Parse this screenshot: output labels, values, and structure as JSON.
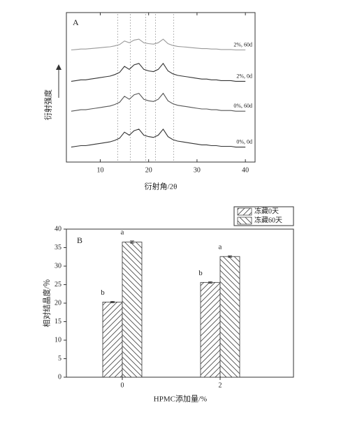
{
  "chart_data": [
    {
      "type": "line",
      "panel": "A",
      "x_label": "衍射角/2θ",
      "y_label": "衍射强度",
      "x": [
        4,
        5,
        6,
        7,
        8,
        9,
        10,
        11,
        12,
        13,
        14,
        15,
        16,
        17,
        18,
        19,
        20,
        21,
        22,
        23,
        24,
        25,
        26,
        27,
        28,
        29,
        30,
        31,
        32,
        33,
        34,
        35,
        36,
        37,
        38,
        39,
        40
      ],
      "xlim": [
        3,
        42
      ],
      "xticks": [
        10,
        20,
        30,
        40
      ],
      "ylim": [
        0,
        100
      ],
      "ref_lines": [
        13.6,
        16.2,
        19.4,
        21.4,
        25.2
      ],
      "series": [
        {
          "name": "0%, 0d",
          "color": "#333333",
          "values": [
            10,
            10.5,
            11,
            11,
            11.5,
            12,
            12.5,
            13,
            13.5,
            14.5,
            16,
            20,
            18,
            21,
            22,
            18,
            17,
            16.5,
            18,
            22,
            17,
            15,
            14,
            13.5,
            13,
            12.5,
            12,
            11.5,
            11.5,
            11,
            11,
            10.5,
            10.5,
            10.5,
            10,
            10,
            10
          ]
        },
        {
          "name": "0%, 60d",
          "color": "#555555",
          "values": [
            34,
            34.5,
            35,
            35,
            35.5,
            36,
            36.5,
            37,
            37.5,
            38.5,
            40,
            44,
            42,
            45,
            46,
            42,
            41,
            40.5,
            42,
            46,
            41,
            39,
            38,
            37.5,
            37,
            36.5,
            36,
            35.5,
            35.5,
            35,
            35,
            34.5,
            34.5,
            34.5,
            34,
            34,
            34
          ]
        },
        {
          "name": "2%, 0d",
          "color": "#333333",
          "values": [
            54,
            54.5,
            55,
            55,
            55.5,
            56,
            56.5,
            57,
            57.5,
            58.5,
            60,
            64,
            62,
            65,
            66,
            62,
            61,
            60.5,
            62,
            66,
            61,
            59,
            58,
            57.5,
            57,
            56.5,
            56,
            55.5,
            55.5,
            55,
            55,
            54.5,
            54.5,
            54.5,
            54,
            54,
            54
          ]
        },
        {
          "name": "2%, 60d",
          "color": "#999999",
          "values": [
            75,
            75.3,
            75.6,
            75.6,
            75.9,
            76.2,
            76.5,
            76.8,
            77.1,
            77.7,
            78.6,
            81,
            79.8,
            81.6,
            82.2,
            79.8,
            79.2,
            78.9,
            79.8,
            82.2,
            79.2,
            78,
            77.4,
            77.1,
            76.8,
            76.5,
            76.2,
            75.9,
            75.9,
            75.6,
            75.6,
            75.3,
            75.3,
            75.3,
            75,
            75,
            75
          ]
        }
      ]
    },
    {
      "type": "bar",
      "panel": "B",
      "x_label": "HPMC添加量/%",
      "y_label": "相对结晶度/％",
      "categories": [
        "0",
        "2"
      ],
      "ylim": [
        0,
        40
      ],
      "yticks": [
        0,
        5,
        10,
        15,
        20,
        25,
        30,
        35,
        40
      ],
      "series": [
        {
          "name": "冻藏0天",
          "color": "#444444",
          "values": [
            20.3,
            25.6
          ],
          "errors": [
            0.2,
            0.2
          ],
          "letters": [
            "b",
            "b"
          ]
        },
        {
          "name": "冻藏60天",
          "color": "#444444",
          "values": [
            36.5,
            32.6
          ],
          "errors": [
            0.3,
            0.2
          ],
          "letters": [
            "a",
            "a"
          ]
        }
      ]
    }
  ]
}
